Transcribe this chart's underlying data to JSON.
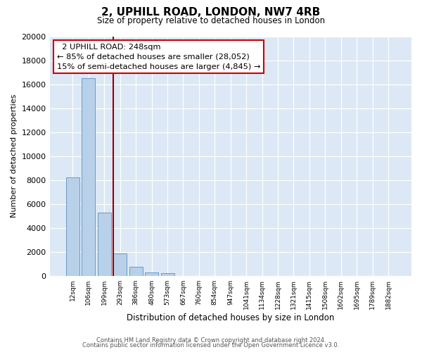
{
  "title": "2, UPHILL ROAD, LONDON, NW7 4RB",
  "subtitle": "Size of property relative to detached houses in London",
  "xlabel": "Distribution of detached houses by size in London",
  "ylabel": "Number of detached properties",
  "bar_labels": [
    "12sqm",
    "106sqm",
    "199sqm",
    "293sqm",
    "386sqm",
    "480sqm",
    "573sqm",
    "667sqm",
    "760sqm",
    "854sqm",
    "947sqm",
    "1041sqm",
    "1134sqm",
    "1228sqm",
    "1321sqm",
    "1415sqm",
    "1508sqm",
    "1602sqm",
    "1695sqm",
    "1789sqm",
    "1882sqm"
  ],
  "bar_values": [
    8200,
    16500,
    5300,
    1850,
    780,
    290,
    220,
    0,
    0,
    0,
    0,
    0,
    0,
    0,
    0,
    0,
    0,
    0,
    0,
    0,
    0
  ],
  "bar_color": "#b8d0e8",
  "bar_edge_color": "#6699cc",
  "property_line_x": 2.55,
  "property_line_color": "#990000",
  "ylim": [
    0,
    20000
  ],
  "yticks": [
    0,
    2000,
    4000,
    6000,
    8000,
    10000,
    12000,
    14000,
    16000,
    18000,
    20000
  ],
  "annotation_title": "2 UPHILL ROAD: 248sqm",
  "annotation_line1": "← 85% of detached houses are smaller (28,052)",
  "annotation_line2": "15% of semi-detached houses are larger (4,845) →",
  "annotation_box_color": "#ffffff",
  "annotation_box_edge": "#cc0000",
  "footer_line1": "Contains HM Land Registry data © Crown copyright and database right 2024.",
  "footer_line2": "Contains public sector information licensed under the Open Government Licence v3.0.",
  "bg_color": "#ffffff",
  "plot_bg_color": "#dce8f5"
}
